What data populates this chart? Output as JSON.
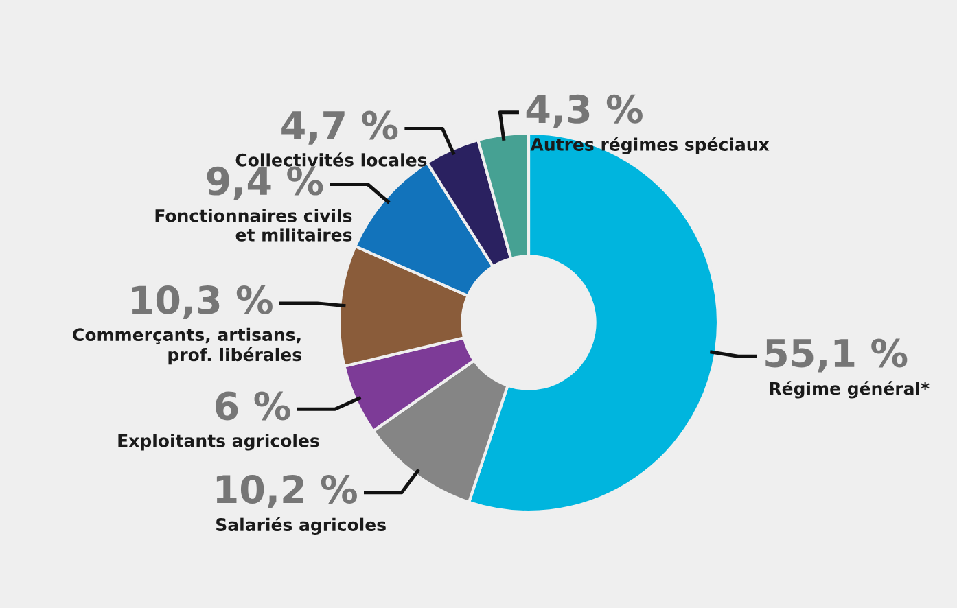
{
  "chart_data": {
    "type": "donut",
    "categories": [
      "Régime général*",
      "Salariés agricoles",
      "Exploitants agricoles",
      "Commerçants, artisans,\nprof. libérales",
      "Fonctionnaires civils\net militaires",
      "Collectivités locales",
      "Autres régimes spéciaux"
    ],
    "values": [
      55.1,
      10.2,
      6,
      10.3,
      9.4,
      4.7,
      4.3
    ],
    "colors": [
      "#00b5de",
      "#858585",
      "#7d3b97",
      "#8a5c3a",
      "#1273bb",
      "#2a2160",
      "#46a193"
    ],
    "value_labels": [
      "55,1 %",
      "10,2 %",
      "6 %",
      "10,3 %",
      "9,4 %",
      "4,7 %",
      "4,3 %"
    ]
  }
}
